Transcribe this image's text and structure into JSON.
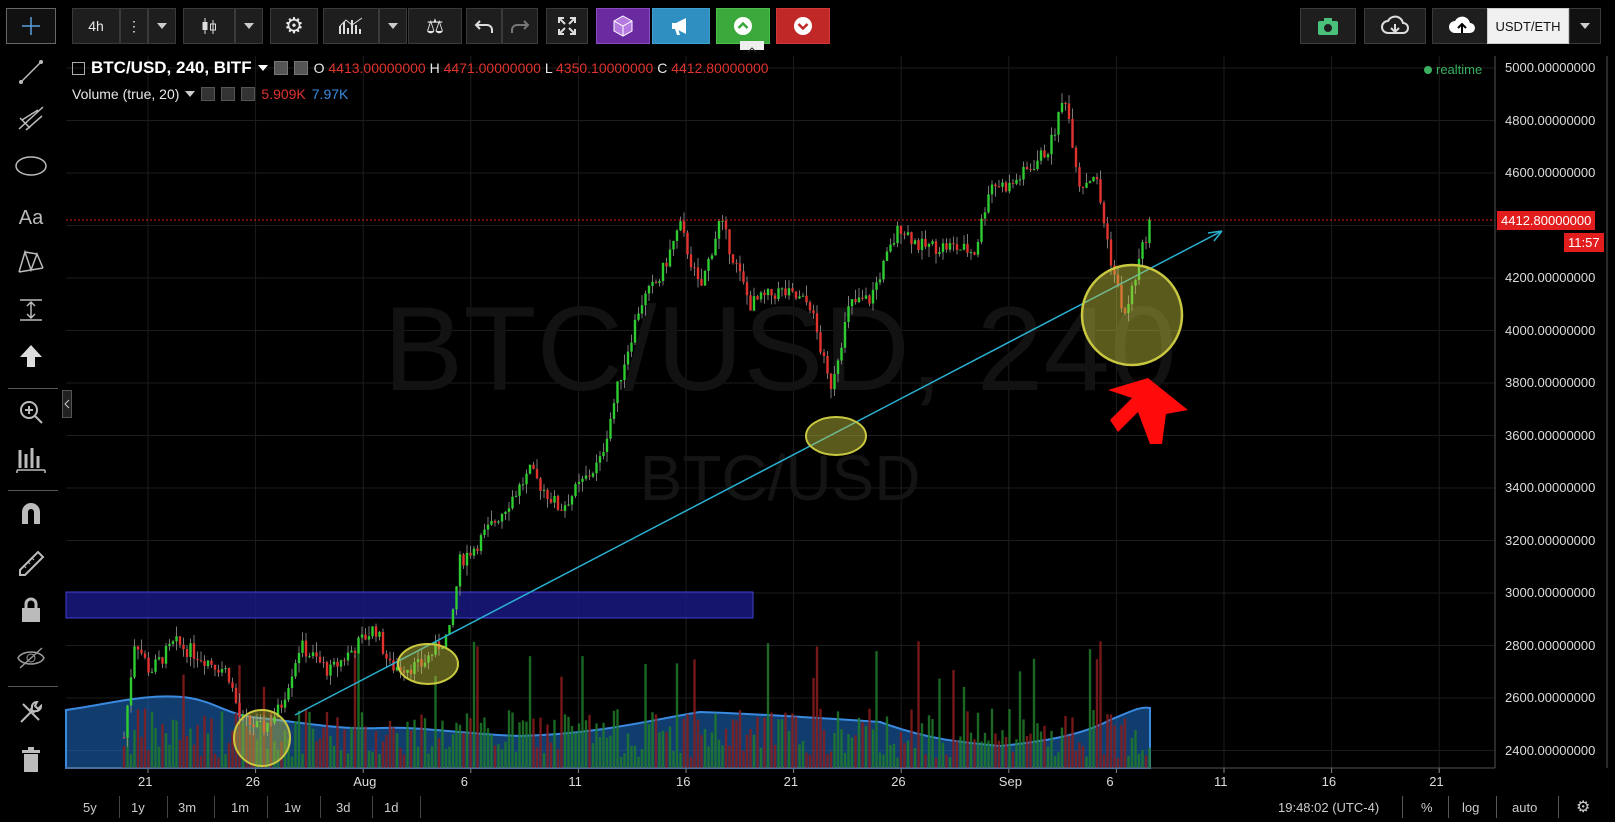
{
  "toolbar": {
    "interval": "4h",
    "symbol_select": "USDT/ETH"
  },
  "legend": {
    "symbol": "BTC/USD, 240, BITF",
    "o_label": "O",
    "o": "4413.00000000",
    "h_label": "H",
    "h": "4471.00000000",
    "l_label": "L",
    "l": "4350.10000000",
    "c_label": "C",
    "c": "4412.80000000"
  },
  "volume_legend": {
    "title": "Volume (true, 20)",
    "v1": "5.909K",
    "v2": "7.97K"
  },
  "realtime": "realtime",
  "watermark": {
    "main": "BTC/USD, 240",
    "sub": "BTC/USD"
  },
  "y_axis": [
    "5000.00000000",
    "4800.00000000",
    "4600.00000000",
    "4400.00000000",
    "4200.00000000",
    "4000.00000000",
    "3800.00000000",
    "3600.00000000",
    "3400.00000000",
    "3200.00000000",
    "3000.00000000",
    "2800.00000000",
    "2600.00000000",
    "2400.00000000"
  ],
  "last_price": "4412.80000000",
  "countdown": "11:57",
  "x_axis": [
    "21",
    "26",
    "Aug",
    "6",
    "11",
    "16",
    "21",
    "26",
    "Sep",
    "6",
    "11",
    "16",
    "21"
  ],
  "bottom": {
    "ranges": [
      "5y",
      "1y",
      "3m",
      "1m",
      "1w",
      "3d",
      "1d"
    ],
    "time": "19:48:02 (UTC-4)",
    "percent": "%",
    "log": "log",
    "auto": "auto"
  },
  "colors": {
    "up": "#2ecc30",
    "down": "#e0332e",
    "trend": "#2ab0d0",
    "zone": "#1a1a8a",
    "highlight": "#c8c840"
  }
}
